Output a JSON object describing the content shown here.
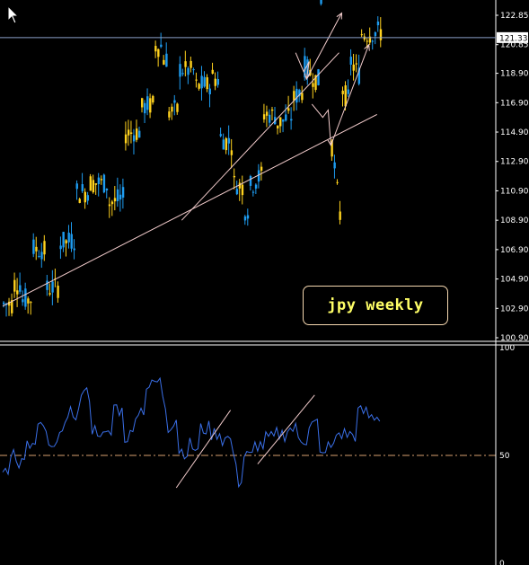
{
  "chart_data": [
    {
      "type": "candlestick",
      "title": "jpy weekly",
      "price_axis": {
        "ticks": [
          "122.85",
          "120.85",
          "118.90",
          "116.90",
          "114.90",
          "112.90",
          "110.90",
          "108.90",
          "106.90",
          "104.90",
          "102.90",
          "100.90"
        ],
        "ylim": [
          100.9,
          123.4
        ],
        "current_price": "121.33"
      },
      "colors": {
        "up": "#ffd21e",
        "down": "#1e9cf0",
        "trend_lines": "#f3cccc",
        "current_line": "#8aa0c8",
        "axis": "#ffffff"
      },
      "grid": false,
      "trend_lines": [
        {
          "from": {
            "bar": 0,
            "price": 103.05
          },
          "to": {
            "bar": 138,
            "price": 116.1
          }
        },
        {
          "from": {
            "bar": 66,
            "price": 108.9
          },
          "to": {
            "bar": 124,
            "price": 120.3
          }
        }
      ],
      "projection_arrows": [
        {
          "path": [
            [
              108,
              120.3
            ],
            [
              111,
              119.0
            ],
            [
              113,
              119.7
            ],
            [
              112,
              118.5
            ]
          ]
        },
        {
          "path": [
            [
              112,
              118.5
            ],
            [
              125,
              123.0
            ]
          ]
        },
        {
          "path": [
            [
              114,
              116.8
            ],
            [
              118,
              115.9
            ],
            [
              120,
              116.4
            ],
            [
              121,
              114.0
            ]
          ]
        },
        {
          "path": [
            [
              121,
              114.0
            ],
            [
              135,
              120.85
            ]
          ]
        }
      ]
    },
    {
      "type": "line",
      "name": "oscillator",
      "axis_ticks": [
        "100",
        "50",
        "0"
      ],
      "ylim": [
        0,
        100
      ],
      "reference_level": 50,
      "line_color": "#3a6fe8",
      "reference_color": "#d9a070",
      "trend_lines": [
        {
          "from": {
            "bar": 64,
            "value": 35
          },
          "to": {
            "bar": 84,
            "value": 71
          }
        },
        {
          "from": {
            "bar": 94,
            "value": 46
          },
          "to": {
            "bar": 115,
            "value": 78
          }
        }
      ]
    }
  ]
}
